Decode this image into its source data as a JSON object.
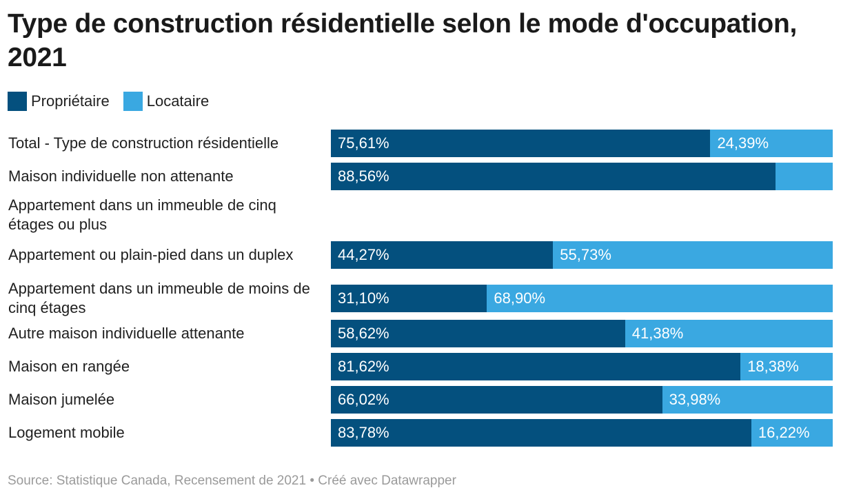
{
  "colors": {
    "owner": "#04507e",
    "tenant": "#3aa8e1"
  },
  "legend": [
    {
      "label": "Propriétaire",
      "color": "#04507e"
    },
    {
      "label": "Locataire",
      "color": "#3aa8e1"
    }
  ],
  "footer": {
    "text": "Source: Statistique Canada, Recensement de 2021 • Créé avec Datawrapper"
  },
  "chart_data": {
    "type": "bar",
    "stacked": true,
    "orientation": "horizontal",
    "title": "Type de construction résidentielle selon le mode d'occupation, 2021",
    "xlabel": "",
    "ylabel": "",
    "xlim": [
      0,
      100
    ],
    "grid": false,
    "legend_position": "top-left",
    "categories": [
      "Total - Type de construction résidentielle",
      "Maison individuelle non attenante",
      "Appartement dans un immeuble de cinq étages ou plus",
      "Appartement ou plain-pied dans un duplex",
      "Appartement dans un immeuble de moins de cinq étages",
      "Autre maison individuelle attenante",
      "Maison en rangée",
      "Maison jumelée",
      "Logement mobile"
    ],
    "series": [
      {
        "name": "Propriétaire",
        "values": [
          75.61,
          88.56,
          null,
          44.27,
          31.1,
          58.62,
          81.62,
          66.02,
          83.78
        ],
        "labels": [
          "75,61%",
          "88,56%",
          "",
          "44,27%",
          "31,10%",
          "58,62%",
          "81,62%",
          "66,02%",
          "83,78%"
        ]
      },
      {
        "name": "Locataire",
        "values": [
          24.39,
          11.44,
          null,
          55.73,
          68.9,
          41.38,
          18.38,
          33.98,
          16.22
        ],
        "labels": [
          "24,39%",
          "",
          "",
          "55,73%",
          "68,90%",
          "41,38%",
          "18,38%",
          "33,98%",
          "16,22%"
        ]
      }
    ]
  }
}
